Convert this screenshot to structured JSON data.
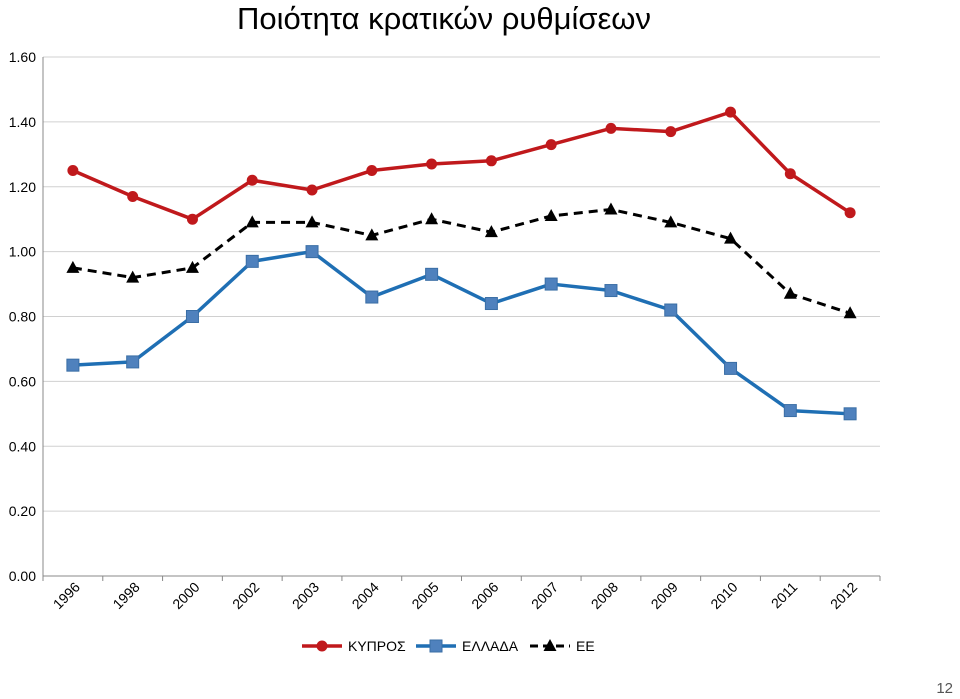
{
  "page_number": "12",
  "chart_data": {
    "type": "line",
    "title": "Ποιότητα κρατικών ρυθμίσεων",
    "xlabel": "",
    "ylabel": "",
    "categories": [
      "1996",
      "1998",
      "2000",
      "2002",
      "2003",
      "2004",
      "2005",
      "2006",
      "2007",
      "2008",
      "2009",
      "2010",
      "2011",
      "2012"
    ],
    "y_ticks": [
      "0.00",
      "0.20",
      "0.40",
      "0.60",
      "0.80",
      "1.00",
      "1.20",
      "1.40",
      "1.60"
    ],
    "ylim": [
      0,
      1.6
    ],
    "grid": "horizontal",
    "legend_position": "bottom",
    "series": [
      {
        "name": "ΚΥΠΡΟΣ",
        "color": "#c0191c",
        "marker": "circle",
        "dash": "solid",
        "values": [
          1.25,
          1.17,
          1.1,
          1.22,
          1.19,
          1.25,
          1.27,
          1.28,
          1.33,
          1.38,
          1.37,
          1.43,
          1.24,
          1.12
        ]
      },
      {
        "name": "ΕΛΛΑΔΑ",
        "color": "#1f6fb4",
        "marker": "square",
        "dash": "solid",
        "values": [
          0.65,
          0.66,
          0.8,
          0.97,
          1.0,
          0.86,
          0.93,
          0.84,
          0.9,
          0.88,
          0.82,
          0.64,
          0.51,
          0.5
        ]
      },
      {
        "name": "ΕΕ",
        "color": "#000000",
        "marker": "triangle",
        "dash": "dashed",
        "values": [
          0.95,
          0.92,
          0.95,
          1.09,
          1.09,
          1.05,
          1.1,
          1.06,
          1.11,
          1.13,
          1.09,
          1.04,
          0.87,
          0.81
        ]
      }
    ]
  }
}
